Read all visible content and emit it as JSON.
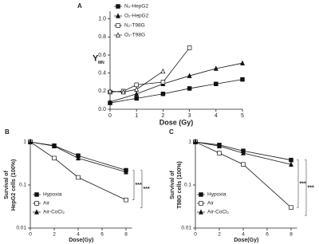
{
  "chart_data": [
    {
      "type": "line",
      "panel_label": "A",
      "xlabel": "Dose (Gy)",
      "ylabel": "Y",
      "ylabel_sub": "MN",
      "xlim": [
        0,
        5
      ],
      "ylim": [
        0,
        1.05
      ],
      "xticks": [
        0,
        1,
        2,
        3,
        4,
        5
      ],
      "yticks": [
        {
          "value": 0,
          "label": "0.0"
        },
        0.2,
        0.4,
        0.6,
        0.8,
        {
          "value": 1,
          "label": "1.0"
        }
      ],
      "legend": "top-left",
      "series": [
        {
          "name": "N₂-HepG2",
          "marker": "square-filled",
          "color": "#111",
          "x": [
            0,
            1,
            2,
            3,
            4,
            5
          ],
          "values": [
            0.07,
            0.12,
            0.17,
            0.23,
            0.28,
            0.33
          ]
        },
        {
          "name": "O₂-HepG2",
          "marker": "triangle-filled",
          "color": "#111",
          "x": [
            0,
            1,
            2,
            3,
            4,
            5
          ],
          "values": [
            0.08,
            0.17,
            0.28,
            0.37,
            0.45,
            0.51
          ]
        },
        {
          "name": "N₂-T98G",
          "marker": "square-open",
          "color": "#111",
          "x": [
            0,
            0.5,
            1,
            2,
            3
          ],
          "values": [
            0.19,
            0.2,
            0.27,
            0.3,
            0.68
          ]
        },
        {
          "name": "O₂-T98G",
          "marker": "triangle-open",
          "color": "#111",
          "x": [
            0,
            0.5,
            1,
            2
          ],
          "values": [
            0.2,
            0.19,
            0.22,
            0.42
          ]
        }
      ]
    },
    {
      "type": "line",
      "panel_label": "B",
      "xlabel": "Dose(Gy)",
      "ylabel": [
        "Survival of",
        "HepG2 cells (100%)"
      ],
      "xlim": [
        0,
        8.5
      ],
      "ylim": [
        0.01,
        1
      ],
      "log_y": true,
      "xticks": [
        0,
        2,
        4,
        6,
        8
      ],
      "yticks": [
        0.01,
        0.1,
        1
      ],
      "legend": "bottom-left",
      "annotations": [
        "***",
        "***"
      ],
      "series": [
        {
          "name": "Hypoxia",
          "marker": "square-filled",
          "color": "#111",
          "x": [
            0,
            2,
            4,
            8
          ],
          "values": [
            1,
            0.82,
            0.48,
            0.22
          ]
        },
        {
          "name": "Air",
          "marker": "square-open",
          "color": "#111",
          "x": [
            0,
            2,
            4,
            8
          ],
          "values": [
            1,
            0.42,
            0.15,
            0.045
          ]
        },
        {
          "name": "Air-CoCl₂",
          "marker": "triangle-filled",
          "color": "#111",
          "x": [
            0,
            2,
            4,
            8
          ],
          "values": [
            1,
            0.8,
            0.42,
            0.2
          ]
        }
      ]
    },
    {
      "type": "line",
      "panel_label": "C",
      "xlabel": "Dose(Gy)",
      "ylabel": [
        "Survival of",
        "T98G cells (100%)"
      ],
      "xlim": [
        0,
        8.5
      ],
      "ylim": [
        0.01,
        1
      ],
      "log_y": true,
      "xticks": [
        0,
        2,
        4,
        6,
        8
      ],
      "yticks": [
        0.01,
        0.1,
        1
      ],
      "legend": "bottom-left",
      "annotations": [
        "***",
        "***"
      ],
      "series": [
        {
          "name": "Hypoxia",
          "marker": "square-filled",
          "color": "#111",
          "x": [
            0,
            2,
            4,
            8
          ],
          "values": [
            1,
            0.85,
            0.62,
            0.38
          ]
        },
        {
          "name": "Air",
          "marker": "square-open",
          "color": "#111",
          "x": [
            0,
            2,
            4,
            8
          ],
          "values": [
            1,
            0.55,
            0.3,
            0.03
          ]
        },
        {
          "name": "Air-CoCl₂",
          "marker": "triangle-filled",
          "color": "#111",
          "x": [
            0,
            2,
            4,
            8
          ],
          "values": [
            1,
            0.8,
            0.55,
            0.3
          ]
        }
      ]
    }
  ]
}
